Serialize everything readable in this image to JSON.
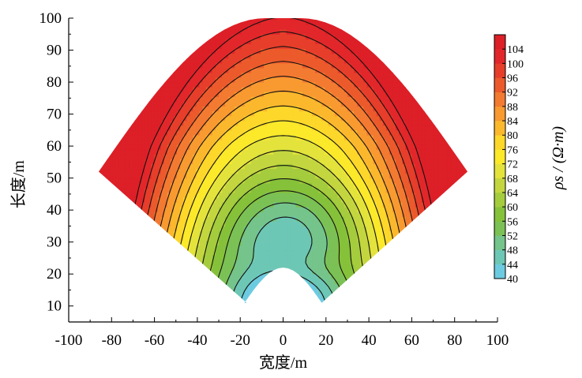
{
  "chart_data": {
    "type": "heatmap",
    "subtype": "filled-contour",
    "title": "",
    "xlabel": "宽度/m",
    "ylabel": "长度/m",
    "colorbar_label": "ρs / (Ω·m)",
    "xlim": [
      -100,
      100
    ],
    "ylim": [
      5,
      100
    ],
    "x_ticks": [
      -100,
      -80,
      -60,
      -40,
      -20,
      0,
      20,
      40,
      60,
      80,
      100
    ],
    "y_ticks": [
      10,
      20,
      30,
      40,
      50,
      60,
      70,
      80,
      90,
      100
    ],
    "colorbar_ticks": [
      40,
      44,
      48,
      52,
      56,
      60,
      64,
      68,
      72,
      76,
      80,
      84,
      88,
      92,
      96,
      100,
      104
    ],
    "colorbar_range": [
      40,
      108
    ],
    "contour_interval": 4,
    "colorbar_colors": [
      "#6ccbe0",
      "#6dc7b5",
      "#74c48b",
      "#7bc155",
      "#86c13a",
      "#a4cc3c",
      "#c4d63f",
      "#e3e33c",
      "#fbe92a",
      "#fdd72a",
      "#fbb82d",
      "#f89a30",
      "#f37a31",
      "#ec5a2c",
      "#e63e2a",
      "#e2272b",
      "#dd1f27"
    ],
    "data_summary": {
      "domain": "fan-shaped survey area, apex near (0, 10), edges to (±85, 52), top at y = 100",
      "minimum": "about 40 Ω·m near x = 0..10, y = 25..45",
      "maximum": "about 104–108 Ω·m at the top-right and top-left edges"
    }
  }
}
